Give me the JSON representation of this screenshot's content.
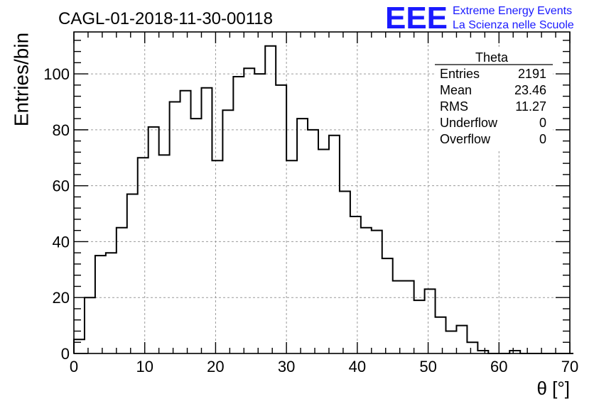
{
  "header": {
    "run_title": "CAGL-01-2018-11-30-00118",
    "logo_letters": "EEE",
    "logo_line1": "Extreme Energy Events",
    "logo_line2": "La Scienza nelle Scuole",
    "logo_color": "#1a1aff"
  },
  "stats_box": {
    "title": "Theta",
    "rows": [
      {
        "label": "Entries",
        "value": "2191"
      },
      {
        "label": "Mean",
        "value": "23.46"
      },
      {
        "label": "RMS",
        "value": "11.27"
      },
      {
        "label": "Underflow",
        "value": "0"
      },
      {
        "label": "Overflow",
        "value": "0"
      }
    ]
  },
  "chart_data": {
    "type": "bar",
    "histogram": true,
    "title": "",
    "xlabel": "θ [°]",
    "ylabel": "Entries/bin",
    "xlim": [
      0,
      70
    ],
    "ylim": [
      0,
      115
    ],
    "bin_width": 1.5,
    "bin_start": 0,
    "x_ticks": [
      "0",
      "10",
      "20",
      "30",
      "40",
      "50",
      "60",
      "70"
    ],
    "y_ticks": [
      "0",
      "20",
      "40",
      "60",
      "80",
      "100"
    ],
    "grid": true,
    "values": [
      5,
      20,
      35,
      36,
      45,
      57,
      70,
      81,
      71,
      90,
      94,
      84,
      95,
      69,
      87,
      99,
      102,
      100,
      110,
      96,
      69,
      84,
      80,
      73,
      78,
      58,
      49,
      45,
      44,
      34,
      26,
      26,
      19,
      23,
      13,
      8,
      10,
      4,
      1,
      0,
      0,
      1,
      0,
      0,
      0,
      0,
      0
    ],
    "line_color": "#000000"
  }
}
